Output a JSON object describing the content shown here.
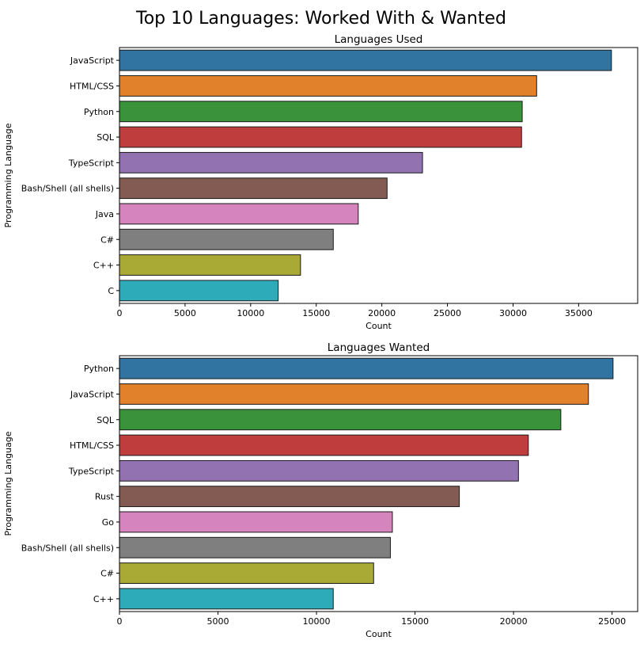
{
  "figure_title": "Top 10 Languages: Worked With & Wanted",
  "chart_data": [
    {
      "type": "bar",
      "orientation": "horizontal",
      "title": "Languages Used",
      "xlabel": "Count",
      "ylabel": "Programming Language",
      "categories": [
        "JavaScript",
        "HTML/CSS",
        "Python",
        "SQL",
        "TypeScript",
        "Bash/Shell (all shells)",
        "Java",
        "C#",
        "C++",
        "C"
      ],
      "values": [
        37500,
        31800,
        30700,
        30650,
        23100,
        20400,
        18200,
        16300,
        13800,
        12100
      ],
      "colors": [
        "#3274a1",
        "#e1812c",
        "#3a923a",
        "#c03d3e",
        "#9372b2",
        "#845b53",
        "#d684bd",
        "#7f7f7f",
        "#a9aa35",
        "#2eabb8"
      ],
      "xlim": [
        0,
        39500
      ],
      "xticks": [
        0,
        5000,
        10000,
        15000,
        20000,
        25000,
        30000,
        35000
      ],
      "xtick_labels": [
        "0",
        "5000",
        "10000",
        "15000",
        "20000",
        "25000",
        "30000",
        "35000"
      ],
      "grid": false
    },
    {
      "type": "bar",
      "orientation": "horizontal",
      "title": "Languages Wanted",
      "xlabel": "Count",
      "ylabel": "Programming Language",
      "categories": [
        "Python",
        "JavaScript",
        "SQL",
        "HTML/CSS",
        "TypeScript",
        "Rust",
        "Go",
        "Bash/Shell (all shells)",
        "C#",
        "C++"
      ],
      "values": [
        25050,
        23800,
        22400,
        20750,
        20250,
        17250,
        13850,
        13750,
        12900,
        10850
      ],
      "colors": [
        "#3274a1",
        "#e1812c",
        "#3a923a",
        "#c03d3e",
        "#9372b2",
        "#845b53",
        "#d684bd",
        "#7f7f7f",
        "#a9aa35",
        "#2eabb8"
      ],
      "xlim": [
        0,
        26300
      ],
      "xticks": [
        0,
        5000,
        10000,
        15000,
        20000,
        25000
      ],
      "xtick_labels": [
        "0",
        "5000",
        "10000",
        "15000",
        "20000",
        "25000"
      ],
      "grid": false
    }
  ]
}
